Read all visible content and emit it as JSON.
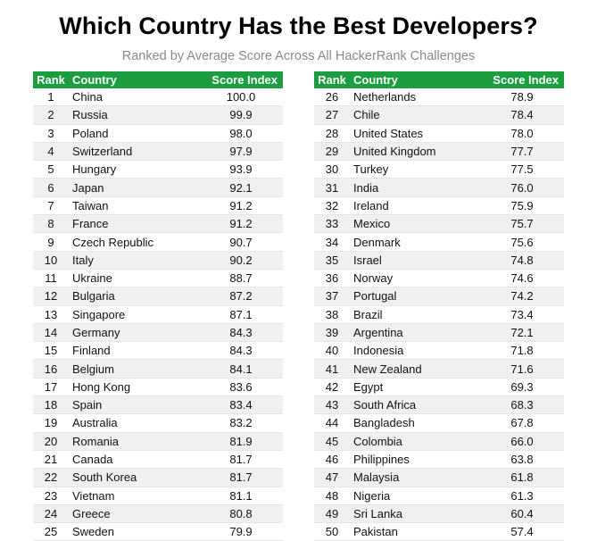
{
  "title": "Which Country Has the Best Developers?",
  "subtitle": "Ranked by Average Score Across All HackerRank Challenges",
  "colors": {
    "header_bg": "#1a9e3f",
    "header_text": "#ffffff",
    "stripe": "#f0f0f0"
  },
  "chart_data": {
    "type": "table",
    "title": "Which Country Has the Best Developers?",
    "subtitle": "Ranked by Average Score Across All HackerRank Challenges",
    "columns": [
      "Rank",
      "Country",
      "Score Index"
    ],
    "rows": [
      [
        "1",
        "China",
        "100.0"
      ],
      [
        "2",
        "Russia",
        "99.9"
      ],
      [
        "3",
        "Poland",
        "98.0"
      ],
      [
        "4",
        "Switzerland",
        "97.9"
      ],
      [
        "5",
        "Hungary",
        "93.9"
      ],
      [
        "6",
        "Japan",
        "92.1"
      ],
      [
        "7",
        "Taiwan",
        "91.2"
      ],
      [
        "8",
        "France",
        "91.2"
      ],
      [
        "9",
        "Czech Republic",
        "90.7"
      ],
      [
        "10",
        "Italy",
        "90.2"
      ],
      [
        "11",
        "Ukraine",
        "88.7"
      ],
      [
        "12",
        "Bulgaria",
        "87.2"
      ],
      [
        "13",
        "Singapore",
        "87.1"
      ],
      [
        "14",
        "Germany",
        "84.3"
      ],
      [
        "15",
        "Finland",
        "84.3"
      ],
      [
        "16",
        "Belgium",
        "84.1"
      ],
      [
        "17",
        "Hong Kong",
        "83.6"
      ],
      [
        "18",
        "Spain",
        "83.4"
      ],
      [
        "19",
        "Australia",
        "83.2"
      ],
      [
        "20",
        "Romania",
        "81.9"
      ],
      [
        "21",
        "Canada",
        "81.7"
      ],
      [
        "22",
        "South Korea",
        "81.7"
      ],
      [
        "23",
        "Vietnam",
        "81.1"
      ],
      [
        "24",
        "Greece",
        "80.8"
      ],
      [
        "25",
        "Sweden",
        "79.9"
      ],
      [
        "26",
        "Netherlands",
        "78.9"
      ],
      [
        "27",
        "Chile",
        "78.4"
      ],
      [
        "28",
        "United States",
        "78.0"
      ],
      [
        "29",
        "United Kingdom",
        "77.7"
      ],
      [
        "30",
        "Turkey",
        "77.5"
      ],
      [
        "31",
        "India",
        "76.0"
      ],
      [
        "32",
        "Ireland",
        "75.9"
      ],
      [
        "33",
        "Mexico",
        "75.7"
      ],
      [
        "34",
        "Denmark",
        "75.6"
      ],
      [
        "35",
        "Israel",
        "74.8"
      ],
      [
        "36",
        "Norway",
        "74.6"
      ],
      [
        "37",
        "Portugal",
        "74.2"
      ],
      [
        "38",
        "Brazil",
        "73.4"
      ],
      [
        "39",
        "Argentina",
        "72.1"
      ],
      [
        "40",
        "Indonesia",
        "71.8"
      ],
      [
        "41",
        "New Zealand",
        "71.6"
      ],
      [
        "42",
        "Egypt",
        "69.3"
      ],
      [
        "43",
        "South Africa",
        "68.3"
      ],
      [
        "44",
        "Bangladesh",
        "67.8"
      ],
      [
        "45",
        "Colombia",
        "66.0"
      ],
      [
        "46",
        "Philippines",
        "63.8"
      ],
      [
        "47",
        "Malaysia",
        "61.8"
      ],
      [
        "48",
        "Nigeria",
        "61.3"
      ],
      [
        "49",
        "Sri Lanka",
        "60.4"
      ],
      [
        "50",
        "Pakistan",
        "57.4"
      ]
    ]
  }
}
